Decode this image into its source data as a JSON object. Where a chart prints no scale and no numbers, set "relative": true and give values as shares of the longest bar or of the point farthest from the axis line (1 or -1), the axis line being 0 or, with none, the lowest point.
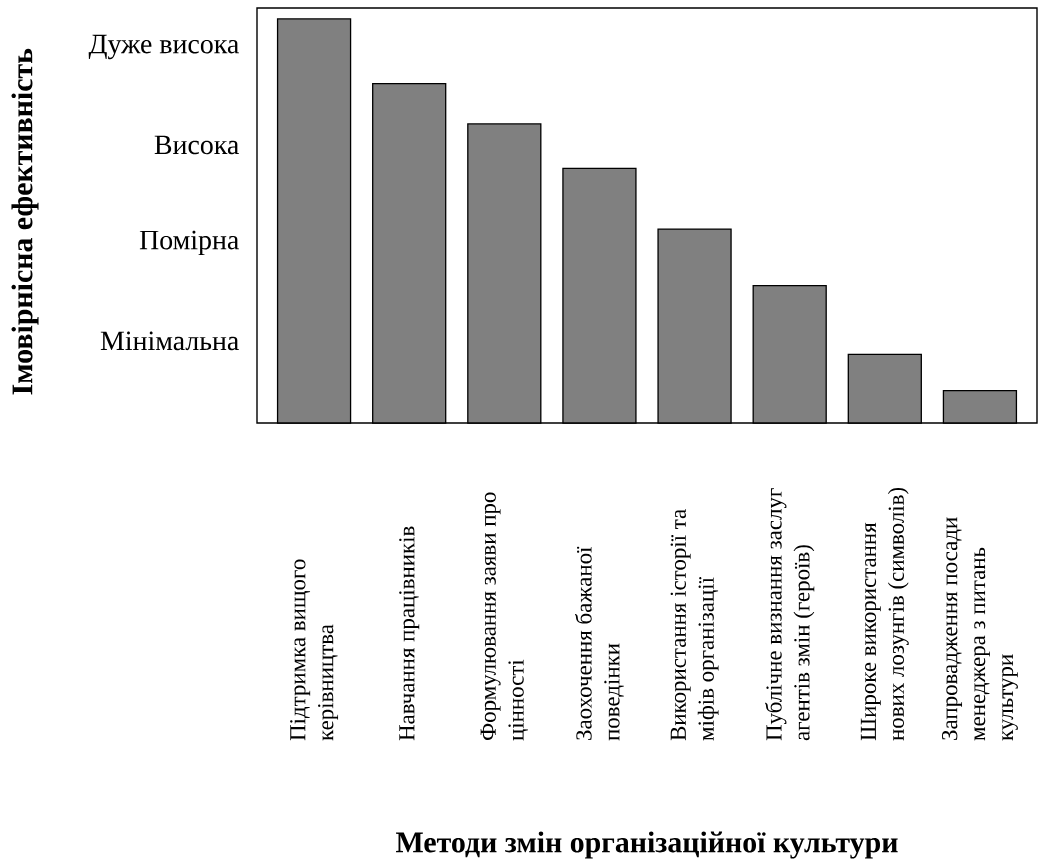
{
  "chart_data": {
    "type": "bar",
    "relative": true,
    "xlabel": "Методи змін організаційної культури",
    "categories": [
      "Підтримка вищого керівництва",
      "Навчання працівників",
      "Формулювання заяви про цінності",
      "Заохочення бажаної поведінки",
      "Використання історії та міфів організації",
      "Публічне визнання заслуг агентів змін (героїв)",
      "Широке використання нових лозунгів (символів)",
      "Запровадження посади менеджера з питань культури"
    ],
    "values": [
      1,
      0.84,
      0.74,
      0.63,
      0.48,
      0.34,
      0.17,
      0.08
    ],
    "color": "#808080",
    "annotations": [
      "Імовірнісна ефективність",
      "Дуже висока",
      "Висока",
      "Помірна",
      "Мінімальна"
    ]
  }
}
